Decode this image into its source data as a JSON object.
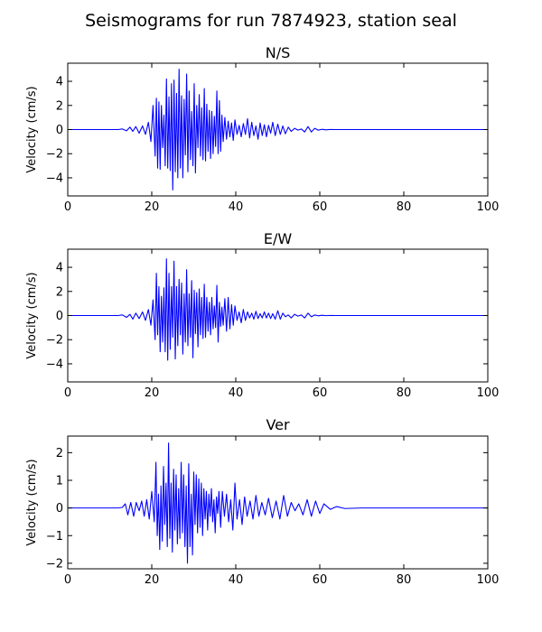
{
  "figure": {
    "title": "Seismograms for run 7874923, station seal"
  },
  "colors": {
    "trace": "#0000ff",
    "axes": "#000000",
    "background": "#ffffff"
  },
  "chart_data": [
    {
      "type": "line",
      "title": "N/S",
      "xlabel": "",
      "ylabel": "Velocity (cm/s)",
      "xlim": [
        0,
        100
      ],
      "ylim": [
        -5.5,
        5.5
      ],
      "xticks": [
        "0",
        "20",
        "40",
        "60",
        "80",
        "100"
      ],
      "yticks": [
        "4",
        "2",
        "0",
        "−2",
        "−4"
      ],
      "grid": false,
      "series": [
        {
          "x": [
            0,
            12,
            13,
            14,
            14.8,
            15.5,
            16.2,
            17,
            17.8,
            18.5,
            19.2,
            19.8,
            20.3,
            20.8,
            21.1,
            21.4,
            21.7,
            22,
            22.3,
            22.6,
            22.9,
            23.2,
            23.5,
            23.8,
            24.1,
            24.4,
            24.7,
            25,
            25.3,
            25.6,
            25.9,
            26.2,
            26.5,
            26.8,
            27.1,
            27.4,
            27.7,
            28,
            28.3,
            28.6,
            28.9,
            29.2,
            29.5,
            29.8,
            30.1,
            30.4,
            30.7,
            31,
            31.3,
            31.6,
            31.9,
            32.2,
            32.5,
            32.8,
            33.1,
            33.4,
            33.7,
            34,
            34.3,
            34.6,
            34.9,
            35.2,
            35.5,
            35.8,
            36.1,
            36.4,
            36.7,
            37,
            37.4,
            37.8,
            38.2,
            38.6,
            39,
            39.4,
            39.8,
            40.3,
            40.8,
            41.3,
            41.8,
            42.3,
            42.8,
            43.3,
            43.8,
            44.3,
            44.8,
            45.3,
            45.8,
            46.3,
            46.8,
            47.3,
            47.8,
            48.3,
            48.8,
            49.4,
            50,
            50.6,
            51.2,
            51.8,
            52.5,
            53.2,
            54,
            54.8,
            55.6,
            56.4,
            57.2,
            58,
            58.8,
            59.6,
            60.5,
            61.5,
            62.5,
            64,
            66,
            70,
            80,
            100
          ],
          "y": [
            0,
            0,
            0.05,
            -0.1,
            0.2,
            -0.15,
            0.25,
            -0.3,
            0.3,
            -0.4,
            0.6,
            -1,
            2,
            -2.2,
            2.6,
            -3.2,
            2.3,
            -3.3,
            2,
            -1.5,
            1.2,
            -3,
            4.2,
            -3.2,
            2.7,
            -3.4,
            3.8,
            -5,
            4.1,
            -3.5,
            3,
            -4,
            5,
            -3.2,
            2.8,
            -4,
            2.5,
            -2.1,
            4.6,
            -3.5,
            3.2,
            -2.5,
            1.5,
            -3,
            3.8,
            -3.6,
            2,
            -1.5,
            2.9,
            -2.2,
            1.8,
            -2.5,
            3.4,
            -2.6,
            2.1,
            -1.8,
            1.6,
            -2.4,
            1.5,
            -2,
            1.1,
            -1.4,
            3.2,
            -2,
            2.4,
            -1.8,
            1.2,
            -1,
            1,
            -0.8,
            0.7,
            -0.6,
            0.55,
            -0.9,
            0.8,
            -0.4,
            0.35,
            -0.6,
            0.5,
            -0.4,
            0.9,
            -0.7,
            0.6,
            -0.5,
            0.3,
            -0.8,
            0.55,
            -0.5,
            0.4,
            -0.6,
            0.35,
            -0.3,
            0.6,
            -0.5,
            0.45,
            -0.4,
            0.3,
            -0.35,
            0.2,
            -0.15,
            0.1,
            -0.05,
            0.05,
            -0.2,
            0.25,
            -0.2,
            0.1,
            -0.05,
            0.02,
            -0.02,
            0.01,
            0,
            0,
            0,
            0,
            0
          ]
        }
      ]
    },
    {
      "type": "line",
      "title": "E/W",
      "xlabel": "",
      "ylabel": "Velocity (cm/s)",
      "xlim": [
        0,
        100
      ],
      "ylim": [
        -5.5,
        5.5
      ],
      "xticks": [
        "0",
        "20",
        "40",
        "60",
        "80",
        "100"
      ],
      "yticks": [
        "4",
        "2",
        "0",
        "−2",
        "−4"
      ],
      "grid": false,
      "series": [
        {
          "x": [
            0,
            12,
            13,
            14,
            14.8,
            15.5,
            16.2,
            17,
            17.8,
            18.5,
            19.2,
            19.8,
            20.3,
            20.8,
            21.1,
            21.4,
            21.7,
            22,
            22.3,
            22.6,
            22.9,
            23.2,
            23.5,
            23.8,
            24.1,
            24.4,
            24.7,
            25,
            25.3,
            25.6,
            25.9,
            26.2,
            26.5,
            26.8,
            27.1,
            27.4,
            27.7,
            28,
            28.3,
            28.6,
            28.9,
            29.2,
            29.5,
            29.8,
            30.1,
            30.4,
            30.7,
            31,
            31.3,
            31.6,
            31.9,
            32.2,
            32.5,
            32.8,
            33.1,
            33.4,
            33.7,
            34,
            34.3,
            34.6,
            34.9,
            35.2,
            35.5,
            35.8,
            36.1,
            36.4,
            36.7,
            37,
            37.4,
            37.8,
            38.2,
            38.6,
            39,
            39.4,
            39.8,
            40.3,
            40.8,
            41.3,
            41.8,
            42.3,
            42.8,
            43.3,
            43.8,
            44.3,
            44.8,
            45.3,
            45.8,
            46.3,
            46.8,
            47.3,
            47.8,
            48.3,
            48.8,
            49.4,
            50,
            50.6,
            51.2,
            51.8,
            52.5,
            53.2,
            54,
            54.8,
            55.6,
            56.4,
            57.2,
            58,
            58.8,
            59.6,
            60.5,
            61.5,
            62.5,
            64,
            66,
            70,
            80,
            100
          ],
          "y": [
            0,
            0,
            0.05,
            -0.15,
            0.1,
            -0.3,
            0.2,
            -0.25,
            0.3,
            -0.4,
            0.5,
            -0.8,
            1.3,
            -2,
            3.5,
            -1.6,
            2.4,
            -3,
            1.6,
            -2.2,
            2.3,
            -3,
            4.7,
            -3.7,
            3.5,
            -2.8,
            2.4,
            -1.8,
            4.5,
            -3.6,
            2.4,
            -2.5,
            3,
            -1.6,
            2.7,
            -3.2,
            1.8,
            -2.2,
            3.8,
            -2.5,
            1.8,
            -1.8,
            2.9,
            -3.5,
            2.1,
            -1.5,
            1.9,
            -2.6,
            2.2,
            -1.6,
            1.5,
            -1.9,
            2.6,
            -1.8,
            1.5,
            -1.3,
            1.1,
            -1.6,
            1.5,
            -1.1,
            0.8,
            -1,
            2.5,
            -2.2,
            1.1,
            -0.9,
            0.7,
            -0.8,
            1.4,
            -1.3,
            1.5,
            -1.1,
            0.9,
            -0.8,
            0.8,
            -0.4,
            0.3,
            -0.6,
            0.5,
            -0.4,
            0.3,
            -0.2,
            0.2,
            -0.3,
            0.35,
            -0.25,
            0.15,
            -0.2,
            0.3,
            -0.2,
            0.2,
            -0.25,
            0.15,
            -0.3,
            0.4,
            -0.3,
            0.2,
            -0.1,
            0.05,
            -0.2,
            0.1,
            -0.05,
            0.05,
            -0.2,
            0.2,
            -0.1,
            0.05,
            -0.02,
            0.02,
            -0.01,
            0.01,
            0,
            0,
            0,
            0,
            0
          ]
        }
      ]
    },
    {
      "type": "line",
      "title": "Ver",
      "xlabel": "",
      "ylabel": "Velocity (cm/s)",
      "xlim": [
        0,
        100
      ],
      "ylim": [
        -2.2,
        2.6
      ],
      "xticks": [
        "0",
        "20",
        "40",
        "60",
        "80",
        "100"
      ],
      "yticks": [
        "2",
        "1",
        "0",
        "−1",
        "−2"
      ],
      "grid": false,
      "series": [
        {
          "x": [
            0,
            12,
            13,
            13.7,
            14.3,
            15,
            15.7,
            16.3,
            17,
            17.6,
            18.2,
            18.8,
            19.4,
            20,
            20.6,
            21,
            21.3,
            21.6,
            21.9,
            22.2,
            22.5,
            22.8,
            23.1,
            23.4,
            23.7,
            24,
            24.3,
            24.6,
            24.9,
            25.2,
            25.5,
            25.8,
            26.1,
            26.4,
            26.7,
            27,
            27.3,
            27.6,
            27.9,
            28.2,
            28.5,
            28.8,
            29.1,
            29.4,
            29.7,
            30,
            30.3,
            30.6,
            30.9,
            31.2,
            31.5,
            31.8,
            32.1,
            32.4,
            32.7,
            33,
            33.3,
            33.6,
            33.9,
            34.2,
            34.5,
            34.8,
            35.1,
            35.4,
            35.7,
            36,
            36.4,
            36.8,
            37.3,
            37.8,
            38.3,
            38.8,
            39.3,
            39.8,
            40.3,
            40.9,
            41.5,
            42.1,
            42.7,
            43.4,
            44.1,
            44.8,
            45.5,
            46.2,
            47,
            47.8,
            48.7,
            49.6,
            50.5,
            51.4,
            52.3,
            53.2,
            54.1,
            55,
            56,
            57,
            58,
            59,
            60,
            61,
            62.5,
            64,
            66,
            70,
            80,
            100
          ],
          "y": [
            0,
            0,
            0.02,
            0.15,
            -0.25,
            0.2,
            -0.3,
            0.2,
            -0.1,
            0.25,
            -0.3,
            0.3,
            -0.4,
            0.6,
            -0.5,
            1.65,
            -1,
            0.5,
            -1.5,
            0.8,
            -1.2,
            1.5,
            -0.6,
            0.9,
            -1.4,
            2.35,
            -1.1,
            0.9,
            -1.6,
            1.4,
            -0.8,
            1.2,
            -1.3,
            0.7,
            -1.1,
            1.65,
            -0.9,
            1.2,
            -1.4,
            0.8,
            -2,
            1.6,
            -1.4,
            0.5,
            -1.7,
            1.3,
            -0.6,
            1.2,
            -0.9,
            1.05,
            -0.7,
            0.9,
            -1,
            0.7,
            -0.4,
            0.6,
            -0.8,
            0.5,
            -0.3,
            0.7,
            -0.5,
            0.3,
            -0.9,
            0.4,
            -0.2,
            0.6,
            -0.7,
            0.6,
            -0.3,
            0.5,
            -0.5,
            0.3,
            -0.8,
            0.9,
            -0.4,
            0.3,
            -0.6,
            0.4,
            -0.3,
            0.25,
            -0.4,
            0.45,
            -0.3,
            0.2,
            -0.25,
            0.35,
            -0.35,
            0.25,
            -0.4,
            0.45,
            -0.3,
            0.2,
            -0.1,
            0.15,
            -0.25,
            0.3,
            -0.3,
            0.25,
            -0.2,
            0.15,
            -0.05,
            0.05,
            -0.02,
            0,
            0,
            0
          ]
        }
      ]
    }
  ]
}
